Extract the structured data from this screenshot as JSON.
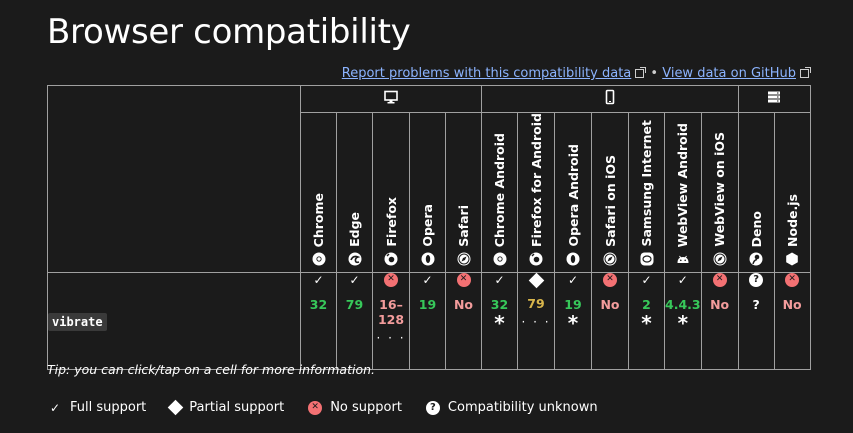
{
  "title": "Browser compatibility",
  "links": {
    "report": "Report problems with this compatibility data",
    "separator": "•",
    "github": "View data on GitHub"
  },
  "platforms": [
    {
      "icon": "desktop-icon",
      "span": 5
    },
    {
      "icon": "mobile-icon",
      "span": 7
    },
    {
      "icon": "server-icon",
      "span": 2
    }
  ],
  "browsers": [
    {
      "name": "Chrome",
      "icon": "chrome-icon"
    },
    {
      "name": "Edge",
      "icon": "edge-icon"
    },
    {
      "name": "Firefox",
      "icon": "firefox-icon"
    },
    {
      "name": "Opera",
      "icon": "opera-icon"
    },
    {
      "name": "Safari",
      "icon": "safari-icon"
    },
    {
      "name": "Chrome Android",
      "icon": "chrome-icon"
    },
    {
      "name": "Firefox for Android",
      "icon": "firefox-icon"
    },
    {
      "name": "Opera Android",
      "icon": "opera-icon"
    },
    {
      "name": "Safari on iOS",
      "icon": "safari-icon"
    },
    {
      "name": "Samsung Internet",
      "icon": "samsung-icon"
    },
    {
      "name": "WebView Android",
      "icon": "android-icon"
    },
    {
      "name": "WebView on iOS",
      "icon": "safari-icon"
    },
    {
      "name": "Deno",
      "icon": "deno-icon"
    },
    {
      "name": "Node.js",
      "icon": "nodejs-icon"
    }
  ],
  "feature": {
    "name": "vibrate",
    "support": [
      {
        "status": "yes",
        "version": "32",
        "color": "g",
        "note": "",
        "more": false
      },
      {
        "status": "yes",
        "version": "79",
        "color": "g",
        "note": "",
        "more": false
      },
      {
        "status": "no",
        "version": "16–\n128",
        "color": "r",
        "note": "",
        "more": true
      },
      {
        "status": "yes",
        "version": "19",
        "color": "g",
        "note": "",
        "more": false
      },
      {
        "status": "no",
        "version": "No",
        "color": "r",
        "note": "",
        "more": false
      },
      {
        "status": "yes",
        "version": "32",
        "color": "g",
        "note": "*",
        "more": false
      },
      {
        "status": "partial",
        "version": "79",
        "color": "y",
        "note": "",
        "more": true
      },
      {
        "status": "yes",
        "version": "19",
        "color": "g",
        "note": "*",
        "more": false
      },
      {
        "status": "no",
        "version": "No",
        "color": "r",
        "note": "",
        "more": false
      },
      {
        "status": "yes",
        "version": "2",
        "color": "g",
        "note": "*",
        "more": false
      },
      {
        "status": "yes",
        "version": "4.4.3",
        "color": "g",
        "note": "*",
        "more": false
      },
      {
        "status": "no",
        "version": "No",
        "color": "r",
        "note": "",
        "more": false
      },
      {
        "status": "unknown",
        "version": "?",
        "color": "w",
        "note": "",
        "more": false
      },
      {
        "status": "no",
        "version": "No",
        "color": "r",
        "note": "",
        "more": false
      }
    ]
  },
  "more_dots": "· · ·",
  "tip": "Tip: you can click/tap on a cell for more information.",
  "legend": [
    {
      "status": "yes",
      "label": "Full support"
    },
    {
      "status": "partial",
      "label": "Partial support"
    },
    {
      "status": "no",
      "label": "No support"
    },
    {
      "status": "unknown",
      "label": "Compatibility unknown"
    }
  ],
  "colors": {
    "background": "#1b1b1b",
    "link": "#8cb4ff",
    "yes": "#37c85a",
    "no": "#f37173",
    "partial": "#d9b64c"
  }
}
